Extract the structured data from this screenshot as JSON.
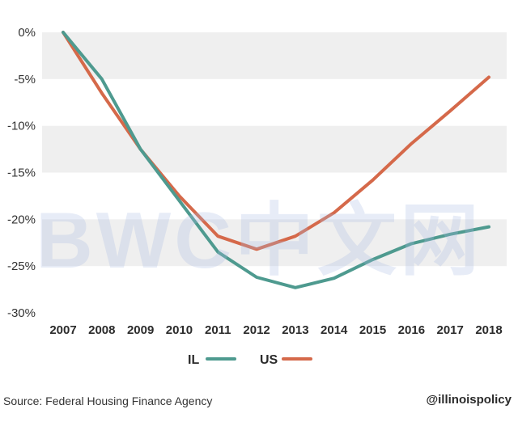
{
  "chart_data": {
    "type": "line",
    "categories": [
      "2007",
      "2008",
      "2009",
      "2010",
      "2011",
      "2012",
      "2013",
      "2014",
      "2015",
      "2016",
      "2017",
      "2018"
    ],
    "series": [
      {
        "name": "IL",
        "color": "#4e9a8f",
        "values": [
          0,
          -5,
          -12.5,
          -18,
          -23.5,
          -26.2,
          -27.3,
          -26.3,
          -24.3,
          -22.6,
          -21.6,
          -20.8
        ]
      },
      {
        "name": "US",
        "color": "#d5694a",
        "values": [
          0,
          -6.5,
          -12.5,
          -17.5,
          -21.8,
          -23.2,
          -21.8,
          -19.3,
          -15.8,
          -11.9,
          -8.4,
          -4.8
        ]
      }
    ],
    "y_ticks": [
      "0%",
      "-5%",
      "-10%",
      "-15%",
      "-20%",
      "-25%",
      "-30%"
    ],
    "ylim": [
      -30,
      0
    ],
    "grid": "alternating horizontal bands",
    "legend_position": "bottom-center"
  },
  "footer": {
    "source": "Source: Federal Housing Finance Agency",
    "handle": "@illinoispolicy"
  },
  "watermark": "BWC中文网",
  "colors": {
    "band": "#efefef",
    "il": "#4e9a8f",
    "us": "#d5694a"
  }
}
